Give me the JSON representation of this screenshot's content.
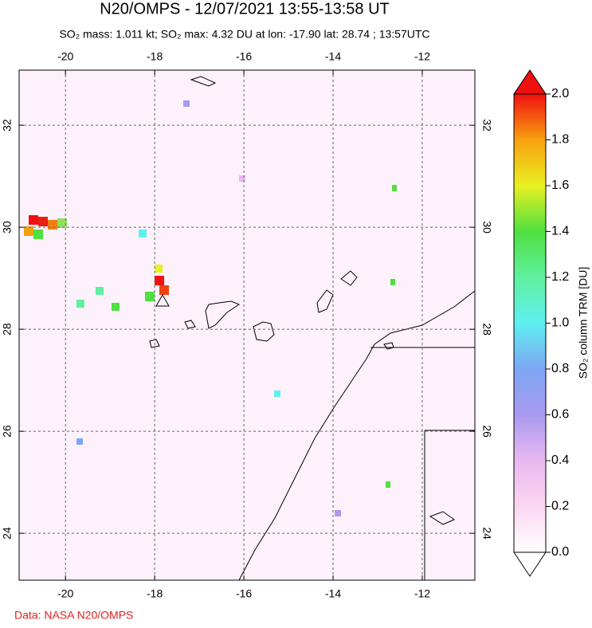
{
  "chart_data": {
    "type": "map",
    "title": "N20/OMPS - 12/07/2021 13:55-13:58 UT",
    "subtitle": "SO₂ mass: 1.011 kt; SO₂ max: 4.32 DU at lon: -17.90 lat: 28.74 ; 13:57UTC",
    "xlim": [
      -21.04,
      -10.82
    ],
    "ylim": [
      23.08,
      33.08
    ],
    "xticks": [
      -20,
      -18,
      -16,
      -14,
      -12
    ],
    "yticks": [
      24,
      26,
      28,
      30,
      32
    ],
    "grid": true,
    "colorbar": {
      "lim": [
        0,
        2
      ],
      "label": "SO₂ column TRM [DU]",
      "ticks": [
        {
          "value": 0,
          "label": "0.0"
        },
        {
          "value": 0.2,
          "label": "0.2"
        },
        {
          "value": 0.4,
          "label": "0.4"
        },
        {
          "value": 0.6,
          "label": "0.6"
        },
        {
          "value": 0.8,
          "label": "0.8"
        },
        {
          "value": 1,
          "label": "1.0"
        },
        {
          "value": 1.2,
          "label": "1.2"
        },
        {
          "value": 1.4,
          "label": "1.4"
        },
        {
          "value": 1.6,
          "label": "1.6"
        },
        {
          "value": 1.8,
          "label": "1.8"
        },
        {
          "value": 2,
          "label": "2.0"
        }
      ]
    },
    "credit": "Data: NASA N20/OMPS"
  }
}
